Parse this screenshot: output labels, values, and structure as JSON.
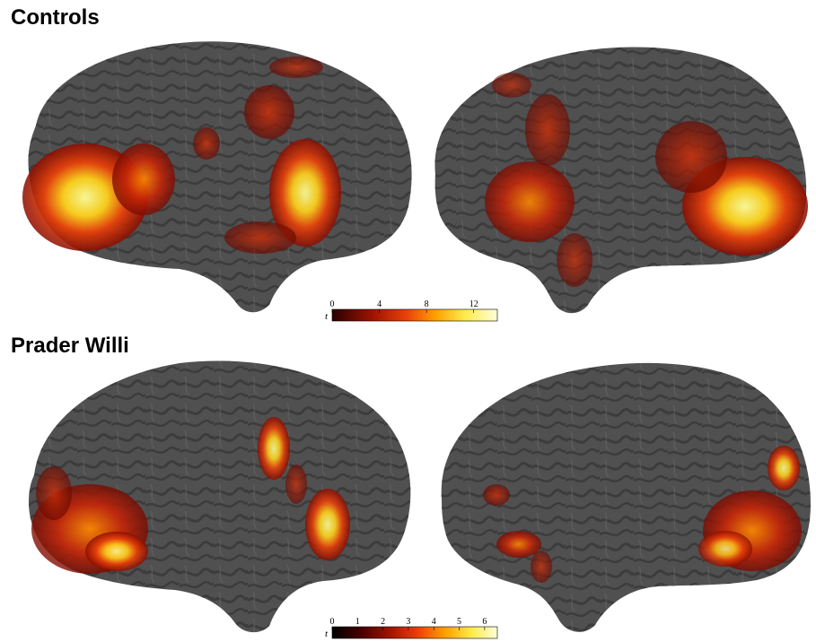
{
  "panels": [
    {
      "title": "Controls",
      "colorbar": {
        "variable": "t",
        "ticks": [
          "0",
          "4",
          "8",
          "12"
        ],
        "range": [
          0,
          14
        ],
        "colors": [
          "#2a0000",
          "#a01400",
          "#e8410a",
          "#ff9d00",
          "#ffe94a",
          "#ffffd8"
        ]
      }
    },
    {
      "title": "Prader Willi",
      "colorbar": {
        "variable": "t",
        "ticks": [
          "0",
          "1",
          "2",
          "3",
          "4",
          "5",
          "6"
        ],
        "range": [
          0,
          6.5
        ],
        "colors": [
          "#000000",
          "#4a0000",
          "#a01400",
          "#e8410a",
          "#ff9d00",
          "#ffe94a",
          "#ffffd8"
        ]
      }
    }
  ],
  "colors": {
    "cortex": "#505050",
    "cortex_highlight": "#6a6a6a",
    "sulcus": "#333333"
  }
}
